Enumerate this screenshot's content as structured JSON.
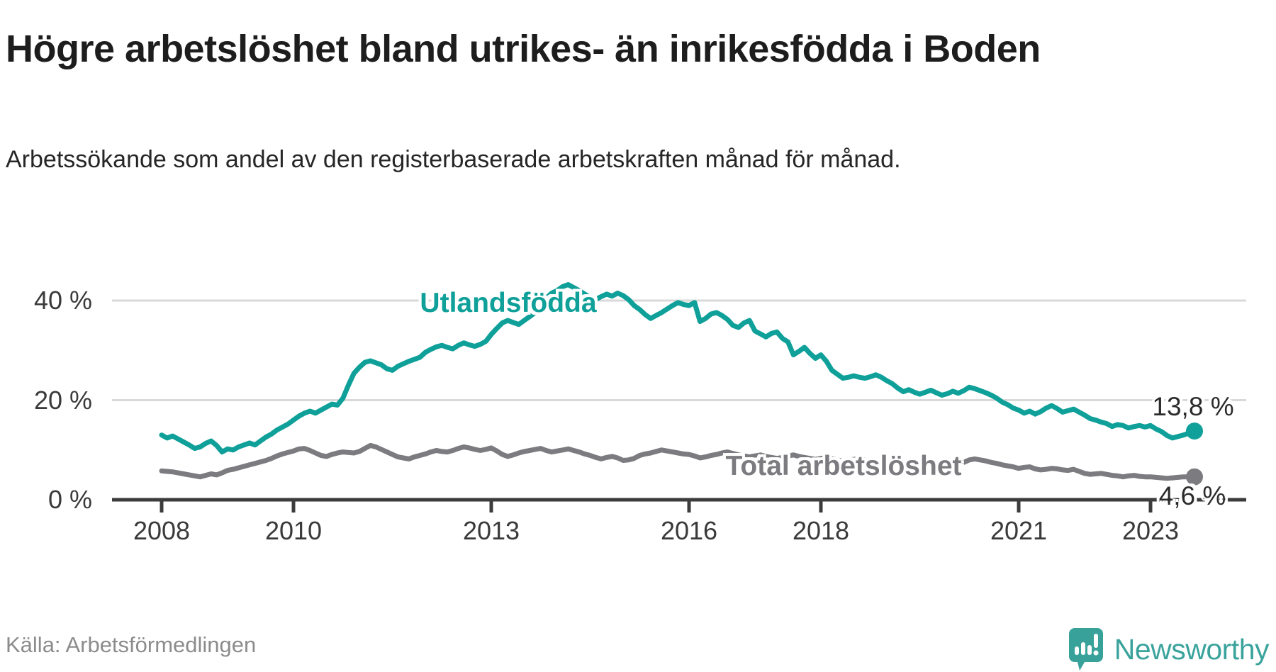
{
  "header": {
    "title": "Högre arbetslöshet bland utrikes- än inrikesfödda i Boden",
    "subtitle": "Arbetssökande som andel av den registerbaserade arbetskraften månad för månad."
  },
  "footer": {
    "source": "Källa: Arbetsförmedlingen",
    "brand": "Newsworthy"
  },
  "colors": {
    "utlandsfodda": "#0fa099",
    "total": "#7b7b80",
    "gridline": "#d9d9d9",
    "axis": "#3c3c3c",
    "brand_teal": "#3aa39c"
  },
  "chart_data": {
    "type": "line",
    "title": "Högre arbetslöshet bland utrikes- än inrikesfödda i Boden",
    "subtitle": "Arbetssökande som andel av den registerbaserade arbetskraften månad för månad.",
    "x_unit": "month",
    "x_start_year": 2008,
    "x_end": "2023-09",
    "x_ticks": [
      2008,
      2010,
      2013,
      2016,
      2018,
      2021,
      2023
    ],
    "y_ticks": [
      0,
      20,
      40
    ],
    "y_tick_labels": [
      "0 %",
      "20 %",
      "40 %"
    ],
    "ylim": [
      0,
      44
    ],
    "grid": "horizontal-only",
    "legend_position": "inline-labels",
    "series": [
      {
        "name": "Utlandsfödda",
        "color": "#0fa099",
        "end_label": "13,8 %",
        "end_value": 13.8,
        "values": [
          13.0,
          12.4,
          12.8,
          12.2,
          11.6,
          11.0,
          10.3,
          10.6,
          11.3,
          11.8,
          10.9,
          9.6,
          10.2,
          10.0,
          10.6,
          11.0,
          11.4,
          11.0,
          11.8,
          12.6,
          13.2,
          14.0,
          14.6,
          15.2,
          16.0,
          16.8,
          17.4,
          17.8,
          17.4,
          18.0,
          18.6,
          19.2,
          19.0,
          20.4,
          23.0,
          25.4,
          26.6,
          27.6,
          27.9,
          27.5,
          27.1,
          26.3,
          26.0,
          26.8,
          27.3,
          27.8,
          28.2,
          28.6,
          29.6,
          30.2,
          30.7,
          31.0,
          30.6,
          30.3,
          31.0,
          31.5,
          31.1,
          30.8,
          31.2,
          31.8,
          33.2,
          34.4,
          35.5,
          36.0,
          35.6,
          35.2,
          36.0,
          36.8,
          37.6,
          38.9,
          40.5,
          41.5,
          42.0,
          42.8,
          43.2,
          42.6,
          42.0,
          41.3,
          40.6,
          40.2,
          40.8,
          41.3,
          40.9,
          41.5,
          41.0,
          40.2,
          39.0,
          38.2,
          37.2,
          36.4,
          37.0,
          37.6,
          38.3,
          39.0,
          39.6,
          39.2,
          39.0,
          39.6,
          35.8,
          36.4,
          37.3,
          37.6,
          37.0,
          36.2,
          35.0,
          34.6,
          35.5,
          36.0,
          33.9,
          33.3,
          32.7,
          33.4,
          33.7,
          32.4,
          31.7,
          29.1,
          29.8,
          30.6,
          29.4,
          28.4,
          29.1,
          27.8,
          26.0,
          25.2,
          24.4,
          24.6,
          24.9,
          24.6,
          24.4,
          24.7,
          25.1,
          24.6,
          23.9,
          23.3,
          22.4,
          21.7,
          22.1,
          21.6,
          21.2,
          21.6,
          22.0,
          21.5,
          21.0,
          21.3,
          21.8,
          21.4,
          21.9,
          22.6,
          22.3,
          21.9,
          21.5,
          21.0,
          20.4,
          19.6,
          19.1,
          18.4,
          18.0,
          17.4,
          17.8,
          17.2,
          17.7,
          18.4,
          18.9,
          18.3,
          17.6,
          17.9,
          18.2,
          17.6,
          17.0,
          16.3,
          16.0,
          15.6,
          15.3,
          14.7,
          15.1,
          14.9,
          14.4,
          14.7,
          14.9,
          14.6,
          14.9,
          14.2,
          13.7,
          12.9,
          12.4,
          12.7,
          13.0,
          13.4,
          13.8
        ]
      },
      {
        "name": "Total arbetslöshet",
        "color": "#7b7b80",
        "end_label": "4,6 %",
        "end_value": 4.6,
        "values": [
          5.8,
          5.7,
          5.6,
          5.4,
          5.2,
          5.0,
          4.8,
          4.6,
          4.9,
          5.2,
          5.0,
          5.4,
          5.9,
          6.1,
          6.4,
          6.7,
          7.0,
          7.3,
          7.6,
          7.9,
          8.3,
          8.8,
          9.2,
          9.5,
          9.8,
          10.2,
          10.3,
          9.9,
          9.4,
          8.9,
          8.7,
          9.1,
          9.4,
          9.6,
          9.5,
          9.4,
          9.7,
          10.3,
          10.9,
          10.6,
          10.1,
          9.6,
          9.1,
          8.6,
          8.4,
          8.2,
          8.6,
          8.9,
          9.2,
          9.6,
          9.9,
          9.7,
          9.6,
          9.9,
          10.3,
          10.6,
          10.4,
          10.1,
          9.9,
          10.1,
          10.4,
          9.8,
          9.1,
          8.7,
          9.0,
          9.4,
          9.7,
          9.9,
          10.1,
          10.3,
          9.9,
          9.6,
          9.8,
          10.0,
          10.2,
          9.9,
          9.6,
          9.2,
          8.9,
          8.5,
          8.2,
          8.5,
          8.7,
          8.4,
          7.9,
          8.0,
          8.3,
          8.9,
          9.2,
          9.4,
          9.7,
          10.0,
          9.8,
          9.6,
          9.4,
          9.2,
          9.1,
          8.8,
          8.4,
          8.6,
          8.9,
          9.1,
          9.4,
          9.6,
          9.3,
          9.0,
          8.8,
          8.6,
          8.8,
          9.0,
          8.7,
          8.5,
          8.3,
          8.5,
          8.8,
          9.0,
          8.7,
          8.5,
          8.3,
          8.1,
          8.3,
          8.5,
          8.2,
          8.0,
          7.8,
          7.9,
          8.1,
          8.3,
          8.0,
          7.8,
          7.6,
          7.4,
          7.6,
          7.8,
          7.5,
          7.3,
          7.1,
          7.2,
          7.4,
          7.5,
          7.3,
          7.1,
          7.0,
          7.2,
          7.4,
          7.2,
          7.5,
          8.0,
          8.2,
          8.0,
          7.8,
          7.5,
          7.3,
          7.0,
          6.8,
          6.6,
          6.3,
          6.5,
          6.6,
          6.2,
          6.0,
          6.1,
          6.3,
          6.2,
          6.0,
          5.9,
          6.1,
          5.7,
          5.3,
          5.1,
          5.2,
          5.3,
          5.1,
          4.9,
          4.8,
          4.6,
          4.8,
          4.9,
          4.7,
          4.6,
          4.6,
          4.5,
          4.4,
          4.3,
          4.4,
          4.5,
          4.6,
          4.6,
          4.6
        ]
      }
    ]
  }
}
